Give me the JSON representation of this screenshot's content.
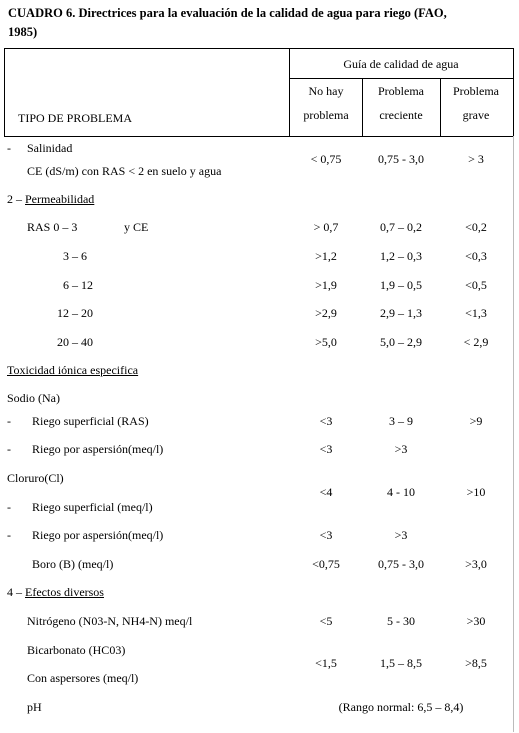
{
  "title_line1": "CUADRO  6. Directrices para la evaluación de la calidad de agua para  riego (FAO,",
  "title_line2": "1985)",
  "header": {
    "type_label": "TIPO DE PROBLEMA",
    "guide_label": "Guía de calidad de agua",
    "col1_l1": "No hay",
    "col1_l2": "problema",
    "col2_l1": "Problema",
    "col2_l2": "creciente",
    "col3_l1": "Problema",
    "col3_l2": "grave"
  },
  "rows": {
    "salinidad_dash": "-",
    "salinidad": "Salinidad",
    "ce": "CE  (dS/m)   con  RAS < 2   en suelo y agua",
    "ce_v1": "< 0,75",
    "ce_v2": "0,75  - 3,0",
    "ce_v3": "> 3",
    "perm_prefix": "2 – ",
    "perm": "Permeabilidad",
    "ras_a": "RAS      0 – 3",
    "ras_b": "y   CE",
    "r1_v1": "> 0,7",
    "r1_v2": "0,7 – 0,2",
    "r1_v3": "<0,2",
    "r2": "3 – 6",
    "r2_v1": ">1,2",
    "r2_v2": "1,2 – 0,3",
    "r2_v3": "<0,3",
    "r3": "6 – 12",
    "r3_v1": ">1,9",
    "r3_v2": "1,9 – 0,5",
    "r3_v3": "<0,5",
    "r4": "12 – 20",
    "r4_v1": ">2,9",
    "r4_v2": "2,9 – 1,3",
    "r4_v3": "<1,3",
    "r5": "20 – 40",
    "r5_v1": ">5,0",
    "r5_v2": "5,0 – 2,9",
    "r5_v3": "< 2,9",
    "tox": "Toxicidad iónica especifica",
    "sodio": "Sodio (Na)",
    "dash": "-",
    "sodio_sup": "Riego superficial (RAS)",
    "ss_v1": "<3",
    "ss_v2": "3 – 9",
    "ss_v3": ">9",
    "sodio_asp": "Riego por aspersión(meq/l)",
    "sa_v1": "<3",
    "sa_v2": ">3",
    "cloruro": "Cloruro(Cl)",
    "cl_v1": "<4",
    "cl_v2": "4 - 10",
    "cl_v3": ">10",
    "cl_sup": "Riego superficial (meq/l)",
    "cl_asp": "Riego por aspersión(meq/l)",
    "ca_v1": "<3",
    "ca_v2": ">3",
    "boro": "Boro (B)  (meq/l)",
    "b_v1": "<0,75",
    "b_v2": "0,75  - 3,0",
    "b_v3": ">3,0",
    "efectos_prefix": "4 – ",
    "efectos": "Efectos diversos",
    "nitrogeno": "Nitrógeno (N03-N,  NH4-N)  meq/l",
    "n_v1": "<5",
    "n_v2": "5 - 30",
    "n_v3": ">30",
    "bicarbonato": "Bicarbonato (HC03)",
    "bi_v1": "<1,5",
    "bi_v2": "1,5 – 8,5",
    "bi_v3": ">8,5",
    "aspersores": "Con aspersores (meq/l)",
    "ph": "pH",
    "ph_range": "(Rango normal: 6,5 – 8,4)"
  }
}
